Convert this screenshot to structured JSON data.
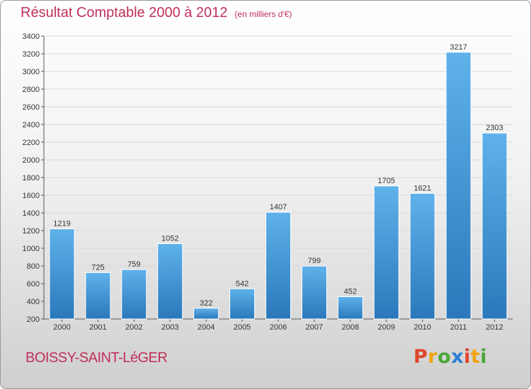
{
  "title": "Résultat Comptable 2000 à 2012",
  "subtitle": "(en milliers d'€)",
  "place": "BOISSY-SAINT-LéGER",
  "logo": {
    "letters": [
      "P",
      "r",
      "o",
      "x",
      "i",
      "t",
      "i"
    ],
    "colors": [
      "#e0452b",
      "#f2a20c",
      "#4aa63a",
      "#2b7fd3",
      "#e0452b",
      "#f2a20c",
      "#4aa63a"
    ]
  },
  "colors": {
    "bar": "#3f97d8",
    "bar_light": "#5fb2ea",
    "bar_dark": "#2a78bb",
    "title": "#c0305a",
    "grid": "#d8d8d8"
  },
  "chart_data": {
    "type": "bar",
    "categories": [
      "2000",
      "2001",
      "2002",
      "2003",
      "2004",
      "2005",
      "2006",
      "2007",
      "2008",
      "2009",
      "2010",
      "2011",
      "2012"
    ],
    "values": [
      1219,
      725,
      759,
      1052,
      322,
      542,
      1407,
      799,
      452,
      1705,
      1621,
      3217,
      2303
    ],
    "ylim": [
      200,
      3400
    ],
    "yticks": [
      200,
      400,
      600,
      800,
      1000,
      1200,
      1400,
      1600,
      1800,
      2000,
      2200,
      2400,
      2600,
      2800,
      3000,
      3200,
      3400
    ],
    "grid": true,
    "data_labels": true
  }
}
